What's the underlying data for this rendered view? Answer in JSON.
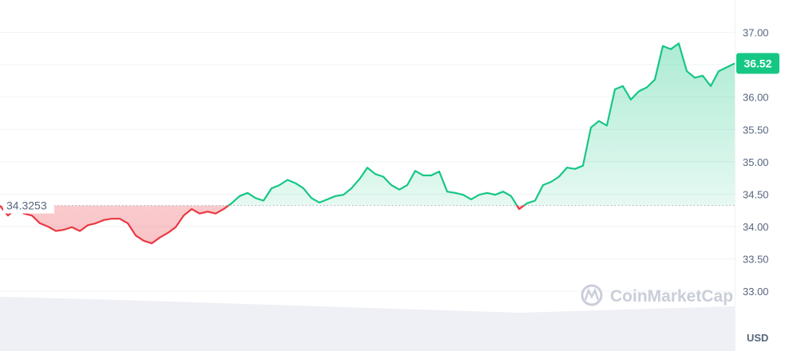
{
  "chart_data": {
    "type": "line",
    "title": "",
    "xlabel": "",
    "ylabel": "",
    "unit": "USD",
    "ylim": [
      32.2,
      37.5
    ],
    "y_ticks": [
      "37.00",
      "36.50",
      "36.00",
      "35.50",
      "35.00",
      "34.50",
      "34.00",
      "33.50",
      "33.00"
    ],
    "y_tick_labels": [
      "37.00",
      "36.00",
      "35.50",
      "35.00",
      "34.50",
      "34.00",
      "33.50",
      "33.00"
    ],
    "baseline": {
      "value": 34.3253,
      "label": "34.3253"
    },
    "current_price": {
      "value": 36.52,
      "label": "36.52"
    },
    "grid": true,
    "values": [
      34.32,
      34.17,
      34.27,
      34.2,
      34.17,
      34.05,
      34.0,
      33.93,
      33.95,
      33.99,
      33.93,
      34.02,
      34.05,
      34.1,
      34.12,
      34.12,
      34.05,
      33.86,
      33.78,
      33.74,
      33.83,
      33.9,
      33.99,
      34.17,
      34.27,
      34.2,
      34.23,
      34.2,
      34.27,
      34.36,
      34.47,
      34.52,
      34.44,
      34.4,
      34.59,
      34.64,
      34.72,
      34.67,
      34.59,
      34.44,
      34.37,
      34.42,
      34.47,
      34.49,
      34.59,
      34.73,
      34.91,
      34.81,
      34.77,
      34.64,
      34.57,
      34.64,
      34.86,
      34.79,
      34.79,
      34.85,
      34.54,
      34.52,
      34.49,
      34.42,
      34.49,
      34.52,
      34.49,
      34.54,
      34.47,
      34.27,
      34.36,
      34.4,
      34.64,
      34.69,
      34.77,
      34.91,
      34.89,
      34.94,
      35.53,
      35.63,
      35.56,
      36.12,
      36.17,
      35.96,
      36.09,
      36.15,
      36.27,
      36.79,
      36.74,
      36.83,
      36.4,
      36.3,
      36.33,
      36.17,
      36.4,
      36.46,
      36.52
    ],
    "colors": {
      "up": "#16c784",
      "down": "#ea3943",
      "grid": "#eff2f5",
      "volume": "#eef0f5",
      "badge": "#16c784"
    },
    "watermark": "CoinMarketCap"
  }
}
